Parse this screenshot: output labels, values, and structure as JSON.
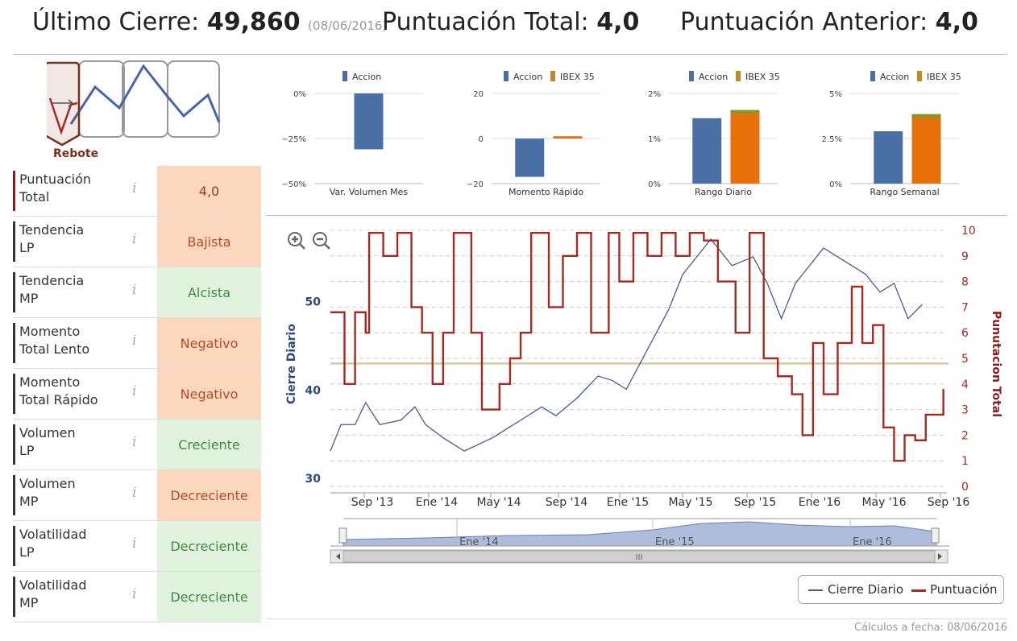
{
  "header": {
    "last_close_label": "Último Cierre:",
    "last_close_value": "49,860",
    "last_close_date": "(08/06/2016)",
    "total_score_label": "Puntuación Total:",
    "total_score_value": "4,0",
    "prev_score_label": "Puntuación Anterior:",
    "prev_score_value": "4,0"
  },
  "pattern": {
    "label": "Rebote"
  },
  "indicators": [
    {
      "label_1": "Puntuación",
      "label_2": "Total",
      "value": "4,0",
      "tone": "neu"
    },
    {
      "label_1": "Tendencia",
      "label_2": "LP",
      "value": "Bajista",
      "tone": "neg"
    },
    {
      "label_1": "Tendencia",
      "label_2": "MP",
      "value": "Alcista",
      "tone": "pos"
    },
    {
      "label_1": "Momento",
      "label_2": "Total Lento",
      "value": "Negativo",
      "tone": "neg"
    },
    {
      "label_1": "Momento",
      "label_2": "Total Rápido",
      "value": "Negativo",
      "tone": "neg"
    },
    {
      "label_1": "Volumen",
      "label_2": "LP",
      "value": "Creciente",
      "tone": "pos"
    },
    {
      "label_1": "Volumen",
      "label_2": "MP",
      "value": "Decreciente",
      "tone": "neg"
    },
    {
      "label_1": "Volatilidad",
      "label_2": "LP",
      "value": "Decreciente",
      "tone": "pos"
    },
    {
      "label_1": "Volatilidad",
      "label_2": "MP",
      "value": "Decreciente",
      "tone": "pos"
    }
  ],
  "info_glyph": "i",
  "colors": {
    "accion": "#4a6fa5",
    "ibex": "#e8700a",
    "ibex_legend": "#c0892b",
    "puntuacion": "#a52a1f",
    "cierre": "#4a5a8f",
    "ref_line": "#d8c7a4"
  },
  "chart_data": [
    {
      "type": "bar",
      "title": "Var. Volumen Mes",
      "legend": [
        "Accion"
      ],
      "yticks": [
        "0%",
        "−25%",
        "−50%"
      ],
      "ylim": [
        -50,
        0
      ],
      "values": [
        {
          "name": "Accion",
          "value": -31
        }
      ]
    },
    {
      "type": "bar",
      "title": "Momento Rápido",
      "legend": [
        "Accion",
        "IBEX 35"
      ],
      "yticks": [
        "20",
        "0",
        "−20"
      ],
      "ylim": [
        -20,
        20
      ],
      "values": [
        {
          "name": "Accion",
          "value": -17
        },
        {
          "name": "IBEX 35",
          "value": 1
        }
      ]
    },
    {
      "type": "bar",
      "title": "Rango Diario",
      "legend": [
        "Accion",
        "IBEX 35"
      ],
      "yticks": [
        "2%",
        "1%",
        "0%"
      ],
      "ylim": [
        0,
        2
      ],
      "values": [
        {
          "name": "Accion",
          "value": 1.45
        },
        {
          "name": "IBEX 35",
          "value": 1.63
        }
      ]
    },
    {
      "type": "bar",
      "title": "Rango Semanal",
      "legend": [
        "Accion",
        "IBEX 35"
      ],
      "yticks": [
        "5%",
        "2.5%",
        "0%"
      ],
      "ylim": [
        0,
        5
      ],
      "values": [
        {
          "name": "Accion",
          "value": 2.9
        },
        {
          "name": "IBEX 35",
          "value": 3.85
        }
      ]
    },
    {
      "type": "line",
      "ylabel_left": "Cierre Diario",
      "ylabel_right": "Punutacion Total",
      "left_ticks": [
        "30",
        "40",
        "50"
      ],
      "left_ylim": [
        29,
        58
      ],
      "right_ticks": [
        "0",
        "1",
        "2",
        "3",
        "4",
        "5",
        "6",
        "7",
        "8",
        "9",
        "10"
      ],
      "right_ylim": [
        0,
        10
      ],
      "x_ticks": [
        "Sep '13",
        "Ene '14",
        "May '14",
        "Sep '14",
        "Ene '15",
        "May '15",
        "Sep '15",
        "Ene '16",
        "May '16",
        "Sep '16"
      ],
      "reference_score": 4.8,
      "series": [
        {
          "name": "Cierre Diario",
          "points": [
            [
              0,
              33
            ],
            [
              0.15,
              36
            ],
            [
              0.35,
              36
            ],
            [
              0.5,
              38.5
            ],
            [
              0.7,
              36
            ],
            [
              1.0,
              36.5
            ],
            [
              1.2,
              38
            ],
            [
              1.35,
              36
            ],
            [
              1.6,
              34.5
            ],
            [
              1.9,
              33
            ],
            [
              2.3,
              34.5
            ],
            [
              2.6,
              36
            ],
            [
              3.0,
              38
            ],
            [
              3.2,
              37
            ],
            [
              3.5,
              39
            ],
            [
              3.8,
              41.5
            ],
            [
              4.0,
              41
            ],
            [
              4.2,
              40
            ],
            [
              4.4,
              43
            ],
            [
              4.6,
              46
            ],
            [
              4.8,
              49
            ],
            [
              5.0,
              53
            ],
            [
              5.2,
              55
            ],
            [
              5.4,
              57
            ],
            [
              5.7,
              54
            ],
            [
              6.0,
              55
            ],
            [
              6.2,
              52
            ],
            [
              6.4,
              48
            ],
            [
              6.6,
              52
            ],
            [
              6.8,
              54
            ],
            [
              7.0,
              56
            ],
            [
              7.2,
              55
            ],
            [
              7.4,
              54
            ],
            [
              7.6,
              53
            ],
            [
              7.8,
              51
            ],
            [
              8.0,
              52
            ],
            [
              8.2,
              48
            ],
            [
              8.4,
              49.6
            ]
          ]
        },
        {
          "name": "Puntuación",
          "steps": [
            [
              0,
              6.8
            ],
            [
              0.2,
              4
            ],
            [
              0.35,
              6.8
            ],
            [
              0.5,
              6
            ],
            [
              0.55,
              9.9
            ],
            [
              0.75,
              9
            ],
            [
              0.95,
              9.9
            ],
            [
              1.15,
              7
            ],
            [
              1.3,
              6
            ],
            [
              1.45,
              4
            ],
            [
              1.6,
              6
            ],
            [
              1.75,
              9.9
            ],
            [
              2.0,
              6
            ],
            [
              2.15,
              3
            ],
            [
              2.4,
              4
            ],
            [
              2.55,
              5
            ],
            [
              2.7,
              6
            ],
            [
              2.85,
              9.9
            ],
            [
              3.1,
              7
            ],
            [
              3.3,
              9
            ],
            [
              3.5,
              9.9
            ],
            [
              3.7,
              6
            ],
            [
              3.95,
              9.9
            ],
            [
              4.1,
              8
            ],
            [
              4.3,
              9.9
            ],
            [
              4.5,
              9
            ],
            [
              4.7,
              9.9
            ],
            [
              4.9,
              9
            ],
            [
              5.1,
              9.9
            ],
            [
              5.3,
              9.6
            ],
            [
              5.5,
              8
            ],
            [
              5.75,
              6
            ],
            [
              5.95,
              9.9
            ],
            [
              6.15,
              5
            ],
            [
              6.35,
              4.3
            ],
            [
              6.55,
              3.6
            ],
            [
              6.7,
              2
            ],
            [
              6.85,
              5.6
            ],
            [
              7.0,
              3.6
            ],
            [
              7.2,
              5.6
            ],
            [
              7.4,
              7.8
            ],
            [
              7.55,
              5.6
            ],
            [
              7.7,
              6.3
            ],
            [
              7.85,
              2.3
            ],
            [
              8.0,
              1
            ],
            [
              8.15,
              2
            ],
            [
              8.3,
              1.8
            ],
            [
              8.45,
              2.8
            ],
            [
              8.7,
              3.8
            ]
          ]
        }
      ],
      "navigator": {
        "labels": [
          "Ene '14",
          "Ene '15",
          "Ene '16"
        ]
      }
    }
  ],
  "legend": {
    "cierre": "Cierre Diario",
    "puntuacion": "Puntuación"
  },
  "footer": "Cálculos a fecha: 08/06/2016"
}
